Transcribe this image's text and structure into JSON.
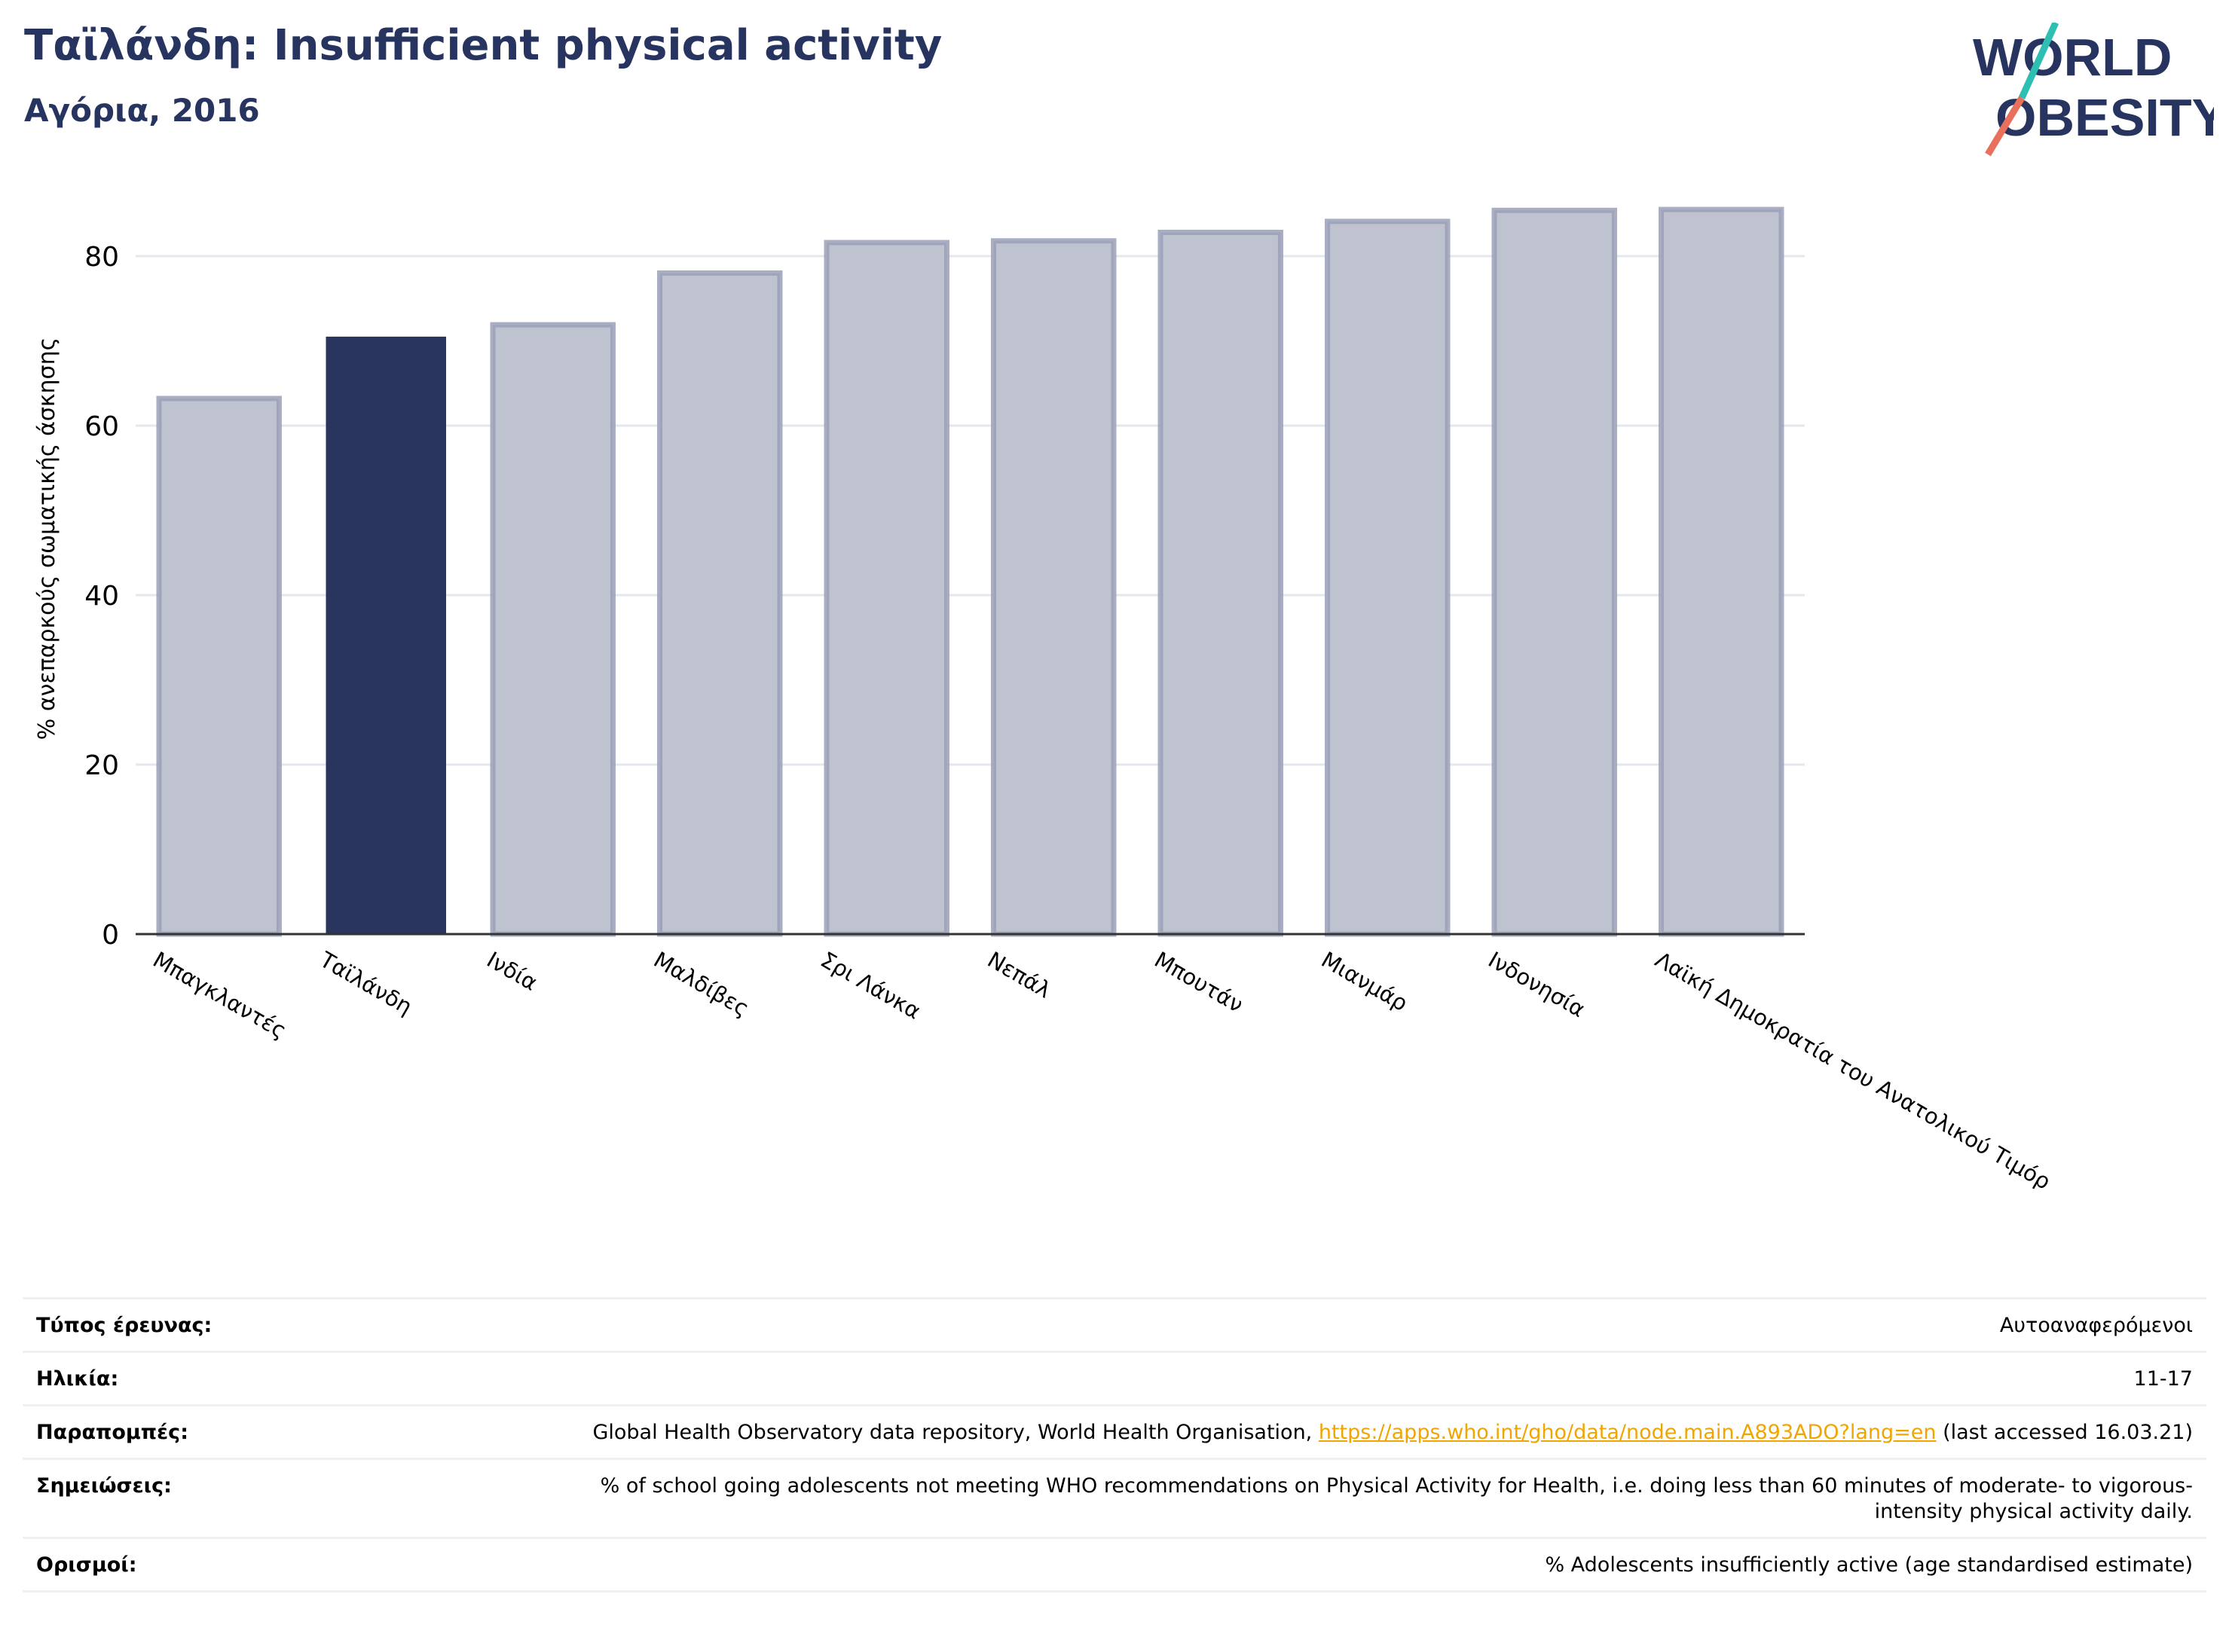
{
  "header": {
    "title": "Ταϊλάνδη: Insufficient physical activity",
    "subtitle": "Αγόρια, 2016"
  },
  "logo": {
    "line1": "WORLD",
    "line2": "OBESITY"
  },
  "colors": {
    "highlight": "#2a355e",
    "bar": "#bfc3cf",
    "bar_border": "#9aa0b8",
    "title": "#273460",
    "link": "#f0a500"
  },
  "chart_data": {
    "type": "bar",
    "title": "Ταϊλάνδη: Insufficient physical activity",
    "subtitle": "Αγόρια, 2016",
    "ylabel": "% ανεπαρκούς σωματικής άσκησης",
    "xlabel": "",
    "ylim": [
      0,
      88
    ],
    "yticks": [
      0,
      20,
      40,
      60,
      80
    ],
    "grid": true,
    "highlight": "Ταϊλάνδη",
    "categories": [
      "Μπαγκλαντές",
      "Ταϊλάνδη",
      "Ινδία",
      "Μαλδίβες",
      "Σρι Λάνκα",
      "Νεπάλ",
      "Μπουτάν",
      "Μιανμάρ",
      "Ινδονησία",
      "Λαϊκή Δημοκρατία του Ανατολικού Τιμόρ"
    ],
    "values": [
      63.2,
      70.5,
      71.9,
      78.0,
      81.6,
      81.8,
      82.8,
      84.1,
      85.4,
      85.5
    ]
  },
  "meta": [
    {
      "label": "Τύπος έρευνας:",
      "value": "Αυτοαναφερόμενοι"
    },
    {
      "label": "Ηλικία:",
      "value": "11-17"
    },
    {
      "label": "Παραπομπές:",
      "value_pre": "Global Health Observatory data repository, World Health Organisation, ",
      "link": "https://apps.who.int/gho/data/node.main.A893ADO?lang=en",
      "value_post": " (last accessed 16.03.21)"
    },
    {
      "label": "Σημειώσεις:",
      "value": "% of school going adolescents not meeting WHO recommendations on Physical Activity for Health, i.e. doing less than 60 minutes of moderate- to vigorous-intensity physical activity daily."
    },
    {
      "label": "Ορισμοί:",
      "value": "% Adolescents insufficiently active (age standardised estimate)"
    }
  ]
}
